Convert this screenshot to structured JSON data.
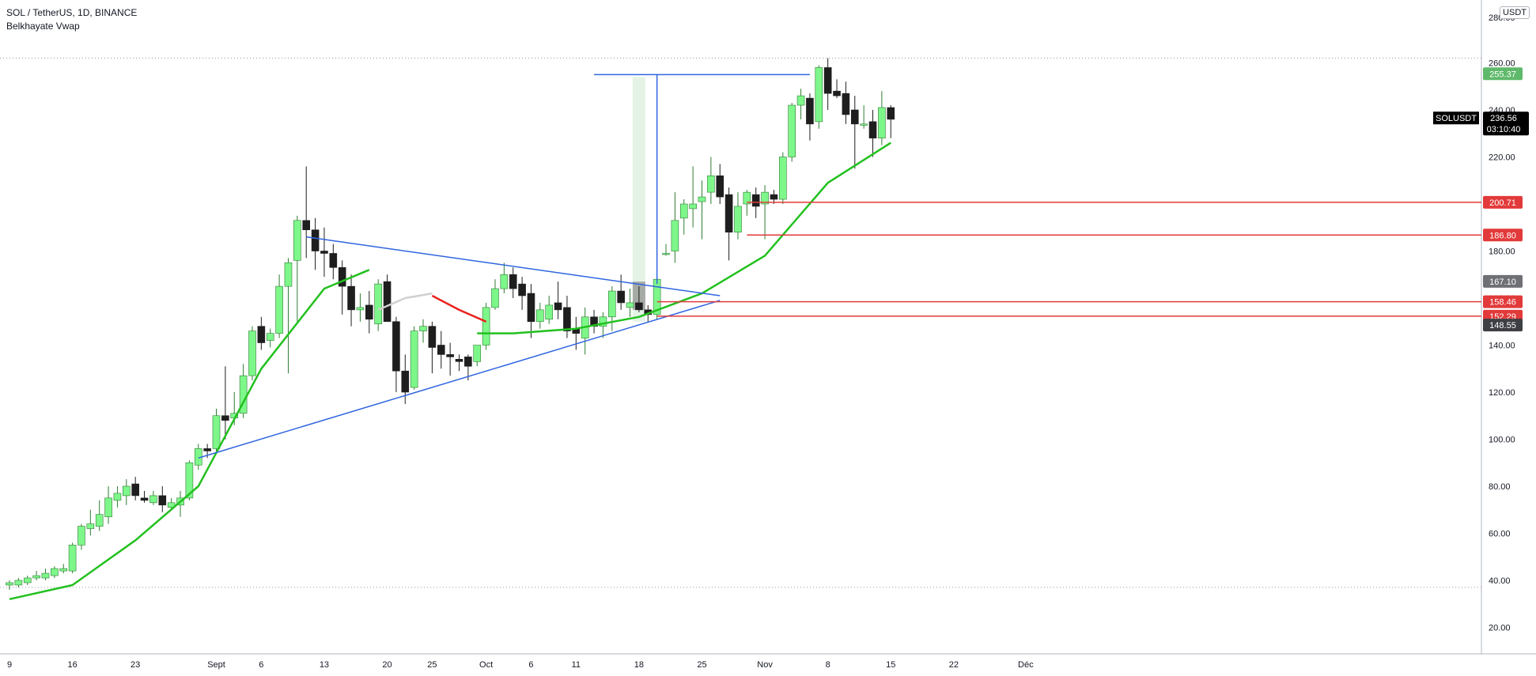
{
  "header": {
    "symbol_line": "SOL / TetherUS, 1D, BINANCE",
    "indicator": "Belkhayate Vwap",
    "currency": "USDT"
  },
  "colors": {
    "up": "#7ef78a",
    "up_border": "#2e7d32",
    "down": "#1e1e1e",
    "vwap": "#22c01e",
    "vwap_red": "#e8231e",
    "vwap_grey": "#d0d0d0",
    "trend": "#2f65e0",
    "level": "#e23a3a"
  },
  "chart_data": {
    "type": "candlestick",
    "symbol": "SOLUSDT",
    "timeframe": "1D",
    "ylim": [
      0,
      280
    ],
    "y_ticks": [
      20,
      40,
      60,
      80,
      100,
      120,
      140,
      160,
      180,
      200,
      220,
      240,
      260
    ],
    "y_tick_labels": [
      "20.00",
      "40.00",
      "60.00",
      "80.00",
      "100.00",
      "120.00",
      "140.00",
      "160.00",
      "180.00",
      "200.00",
      "220.00",
      "240.00",
      "260.00"
    ],
    "x_labels": [
      {
        "day": 0,
        "label": "9"
      },
      {
        "day": 7,
        "label": "16"
      },
      {
        "day": 14,
        "label": "23"
      },
      {
        "day": 23,
        "label": "Sept"
      },
      {
        "day": 28,
        "label": "6"
      },
      {
        "day": 35,
        "label": "13"
      },
      {
        "day": 42,
        "label": "20"
      },
      {
        "day": 47,
        "label": "25"
      },
      {
        "day": 53,
        "label": "Oct"
      },
      {
        "day": 58,
        "label": "6"
      },
      {
        "day": 63,
        "label": "11"
      },
      {
        "day": 70,
        "label": "18"
      },
      {
        "day": 77,
        "label": "25"
      },
      {
        "day": 84,
        "label": "Nov"
      },
      {
        "day": 91,
        "label": "8"
      },
      {
        "day": 98,
        "label": "15"
      },
      {
        "day": 105,
        "label": "22"
      },
      {
        "day": 113,
        "label": "Déc"
      }
    ],
    "candles": [
      {
        "o": 38,
        "h": 40,
        "l": 36,
        "c": 39
      },
      {
        "o": 38,
        "h": 41,
        "l": 37,
        "c": 40
      },
      {
        "o": 39,
        "h": 42,
        "l": 38,
        "c": 41
      },
      {
        "o": 41,
        "h": 44,
        "l": 40,
        "c": 42
      },
      {
        "o": 41,
        "h": 45,
        "l": 40,
        "c": 43
      },
      {
        "o": 42,
        "h": 46,
        "l": 41,
        "c": 45
      },
      {
        "o": 44,
        "h": 47,
        "l": 43,
        "c": 45
      },
      {
        "o": 44,
        "h": 56,
        "l": 43,
        "c": 55
      },
      {
        "o": 55,
        "h": 64,
        "l": 53,
        "c": 63
      },
      {
        "o": 62,
        "h": 70,
        "l": 59,
        "c": 64
      },
      {
        "o": 63,
        "h": 74,
        "l": 61,
        "c": 68
      },
      {
        "o": 67,
        "h": 80,
        "l": 64,
        "c": 75
      },
      {
        "o": 74,
        "h": 80,
        "l": 71,
        "c": 77
      },
      {
        "o": 76,
        "h": 83,
        "l": 72,
        "c": 80
      },
      {
        "o": 81,
        "h": 84,
        "l": 74,
        "c": 76
      },
      {
        "o": 75,
        "h": 78,
        "l": 73,
        "c": 74
      },
      {
        "o": 73,
        "h": 78,
        "l": 72,
        "c": 76
      },
      {
        "o": 76,
        "h": 80,
        "l": 69,
        "c": 72
      },
      {
        "o": 71,
        "h": 75,
        "l": 70,
        "c": 73
      },
      {
        "o": 72,
        "h": 78,
        "l": 67,
        "c": 75
      },
      {
        "o": 75,
        "h": 91,
        "l": 74,
        "c": 90
      },
      {
        "o": 89,
        "h": 98,
        "l": 87,
        "c": 96
      },
      {
        "o": 96,
        "h": 98,
        "l": 92,
        "c": 95
      },
      {
        "o": 96,
        "h": 113,
        "l": 95,
        "c": 110
      },
      {
        "o": 110,
        "h": 131,
        "l": 100,
        "c": 108
      },
      {
        "o": 109,
        "h": 120,
        "l": 106,
        "c": 111
      },
      {
        "o": 111,
        "h": 132,
        "l": 109,
        "c": 127
      },
      {
        "o": 127,
        "h": 148,
        "l": 125,
        "c": 146
      },
      {
        "o": 148,
        "h": 152,
        "l": 138,
        "c": 141
      },
      {
        "o": 142,
        "h": 147,
        "l": 139,
        "c": 145
      },
      {
        "o": 145,
        "h": 170,
        "l": 143,
        "c": 165
      },
      {
        "o": 165,
        "h": 177,
        "l": 128,
        "c": 175
      },
      {
        "o": 176,
        "h": 195,
        "l": 150,
        "c": 193
      },
      {
        "o": 193,
        "h": 216,
        "l": 177,
        "c": 189
      },
      {
        "o": 189,
        "h": 194,
        "l": 172,
        "c": 180
      },
      {
        "o": 180,
        "h": 190,
        "l": 169,
        "c": 179
      },
      {
        "o": 179,
        "h": 183,
        "l": 168,
        "c": 173
      },
      {
        "o": 173,
        "h": 176,
        "l": 153,
        "c": 165
      },
      {
        "o": 165,
        "h": 170,
        "l": 148,
        "c": 155
      },
      {
        "o": 155,
        "h": 162,
        "l": 150,
        "c": 156
      },
      {
        "o": 157,
        "h": 163,
        "l": 145,
        "c": 151
      },
      {
        "o": 149,
        "h": 168,
        "l": 146,
        "c": 166
      },
      {
        "o": 167,
        "h": 170,
        "l": 150,
        "c": 150
      },
      {
        "o": 150,
        "h": 152,
        "l": 120,
        "c": 129
      },
      {
        "o": 129,
        "h": 136,
        "l": 115,
        "c": 120
      },
      {
        "o": 122,
        "h": 148,
        "l": 121,
        "c": 146
      },
      {
        "o": 146,
        "h": 151,
        "l": 141,
        "c": 148
      },
      {
        "o": 148,
        "h": 150,
        "l": 128,
        "c": 139
      },
      {
        "o": 140,
        "h": 146,
        "l": 130,
        "c": 136
      },
      {
        "o": 136,
        "h": 141,
        "l": 127,
        "c": 135
      },
      {
        "o": 134,
        "h": 136,
        "l": 129,
        "c": 133
      },
      {
        "o": 135,
        "h": 136,
        "l": 125,
        "c": 131
      },
      {
        "o": 133,
        "h": 140,
        "l": 131,
        "c": 140
      },
      {
        "o": 140,
        "h": 158,
        "l": 138,
        "c": 156
      },
      {
        "o": 156,
        "h": 168,
        "l": 155,
        "c": 164
      },
      {
        "o": 164,
        "h": 175,
        "l": 162,
        "c": 170
      },
      {
        "o": 170,
        "h": 173,
        "l": 160,
        "c": 164
      },
      {
        "o": 166,
        "h": 169,
        "l": 155,
        "c": 161
      },
      {
        "o": 162,
        "h": 166,
        "l": 143,
        "c": 150
      },
      {
        "o": 150,
        "h": 158,
        "l": 147,
        "c": 155
      },
      {
        "o": 151,
        "h": 161,
        "l": 149,
        "c": 157
      },
      {
        "o": 158,
        "h": 167,
        "l": 151,
        "c": 155
      },
      {
        "o": 156,
        "h": 161,
        "l": 143,
        "c": 146
      },
      {
        "o": 147,
        "h": 152,
        "l": 138,
        "c": 145
      },
      {
        "o": 143,
        "h": 156,
        "l": 136,
        "c": 152
      },
      {
        "o": 152,
        "h": 155,
        "l": 145,
        "c": 148
      },
      {
        "o": 148,
        "h": 154,
        "l": 143,
        "c": 152
      },
      {
        "o": 152,
        "h": 165,
        "l": 146,
        "c": 163
      },
      {
        "o": 163,
        "h": 170,
        "l": 155,
        "c": 158
      },
      {
        "o": 156,
        "h": 164,
        "l": 152,
        "c": 158
      },
      {
        "o": 158,
        "h": 165,
        "l": 154,
        "c": 155
      },
      {
        "o": 155,
        "h": 157,
        "l": 150,
        "c": 153
      },
      {
        "o": 153,
        "h": 170,
        "l": 151,
        "c": 168
      },
      {
        "o": 179,
        "h": 183,
        "l": 178,
        "c": 179
      },
      {
        "o": 180,
        "h": 205,
        "l": 175,
        "c": 193
      },
      {
        "o": 194,
        "h": 202,
        "l": 187,
        "c": 200
      },
      {
        "o": 198,
        "h": 216,
        "l": 190,
        "c": 200
      },
      {
        "o": 201,
        "h": 210,
        "l": 185,
        "c": 203
      },
      {
        "o": 205,
        "h": 220,
        "l": 200,
        "c": 212
      },
      {
        "o": 212,
        "h": 217,
        "l": 200,
        "c": 203
      },
      {
        "o": 204,
        "h": 207,
        "l": 176,
        "c": 188
      },
      {
        "o": 188,
        "h": 205,
        "l": 185,
        "c": 199
      },
      {
        "o": 200,
        "h": 206,
        "l": 195,
        "c": 205
      },
      {
        "o": 204,
        "h": 207,
        "l": 194,
        "c": 199
      },
      {
        "o": 200,
        "h": 208,
        "l": 185,
        "c": 205
      },
      {
        "o": 204,
        "h": 206,
        "l": 200,
        "c": 202
      },
      {
        "o": 202,
        "h": 222,
        "l": 200,
        "c": 220
      },
      {
        "o": 220,
        "h": 243,
        "l": 218,
        "c": 242
      },
      {
        "o": 242,
        "h": 249,
        "l": 236,
        "c": 246
      },
      {
        "o": 245,
        "h": 247,
        "l": 227,
        "c": 234
      },
      {
        "o": 235,
        "h": 259,
        "l": 232,
        "c": 258
      },
      {
        "o": 258,
        "h": 262,
        "l": 240,
        "c": 247
      },
      {
        "o": 248,
        "h": 253,
        "l": 245,
        "c": 246
      },
      {
        "o": 247,
        "h": 252,
        "l": 234,
        "c": 238
      },
      {
        "o": 240,
        "h": 246,
        "l": 215,
        "c": 234
      },
      {
        "o": 234,
        "h": 242,
        "l": 232,
        "c": 234
      },
      {
        "o": 235,
        "h": 240,
        "l": 220,
        "c": 228
      },
      {
        "o": 228,
        "h": 248,
        "l": 225,
        "c": 241
      },
      {
        "o": 241,
        "h": 242,
        "l": 228,
        "c": 236
      }
    ],
    "vwap": [
      {
        "d": 0,
        "v": 32
      },
      {
        "d": 7,
        "v": 38
      },
      {
        "d": 14,
        "v": 57
      },
      {
        "d": 21,
        "v": 80
      },
      {
        "d": 28,
        "v": 130
      },
      {
        "d": 35,
        "v": 164
      },
      {
        "d": 40,
        "v": 172
      },
      {
        "d": 52,
        "v": 145
      },
      {
        "d": 56,
        "v": 145
      },
      {
        "d": 63,
        "v": 147
      },
      {
        "d": 70,
        "v": 152
      },
      {
        "d": 77,
        "v": 162
      },
      {
        "d": 84,
        "v": 178
      },
      {
        "d": 91,
        "v": 209
      },
      {
        "d": 98,
        "v": 226
      }
    ],
    "vwap_grey": [
      {
        "d": 41,
        "v": 155
      },
      {
        "d": 44,
        "v": 160
      },
      {
        "d": 47,
        "v": 162
      }
    ],
    "vwap_red": [
      {
        "d": 47,
        "v": 161
      },
      {
        "d": 50,
        "v": 155
      },
      {
        "d": 53,
        "v": 150
      }
    ],
    "trendlines": [
      {
        "from": {
          "d": 21,
          "v": 92
        },
        "to": {
          "d": 79,
          "v": 159
        }
      },
      {
        "from": {
          "d": 33,
          "v": 186
        },
        "to": {
          "d": 79,
          "v": 161
        }
      },
      {
        "from": {
          "d": 65,
          "v": 255
        },
        "to": {
          "d": 89,
          "v": 255
        }
      },
      {
        "from": {
          "d": 72,
          "v": 255
        },
        "to": {
          "d": 72,
          "v": 166
        }
      }
    ],
    "highlight": {
      "d_start": 70,
      "d_end": 70.8,
      "v_low": 150,
      "v_high": 254
    },
    "breakout_box": {
      "d": 70,
      "v_low": 155,
      "v_high": 167
    },
    "levels": [
      {
        "value": 200.71,
        "label": "200.71",
        "from_d": 82,
        "color": "#e23a3a"
      },
      {
        "value": 186.8,
        "label": "186.80",
        "from_d": 82,
        "color": "#e23a3a"
      },
      {
        "value": 158.46,
        "label": "158.46",
        "from_d": 72,
        "color": "#e23a3a"
      },
      {
        "value": 152.29,
        "label": "152.29",
        "from_d": 72,
        "color": "#e23a3a"
      }
    ],
    "dotted_levels": [
      262,
      37
    ],
    "price_tags": [
      {
        "value": 255.37,
        "label": "255.37",
        "bg": "#5fb96a"
      },
      {
        "value": 167.1,
        "label": "167.10",
        "bg": "#6e7075"
      },
      {
        "value": 148.55,
        "label": "148.55",
        "bg": "#3d3f44"
      }
    ],
    "last": {
      "value": 236.56,
      "label": "236.56",
      "countdown": "03:10:40",
      "name": "SOLUSDT"
    }
  }
}
